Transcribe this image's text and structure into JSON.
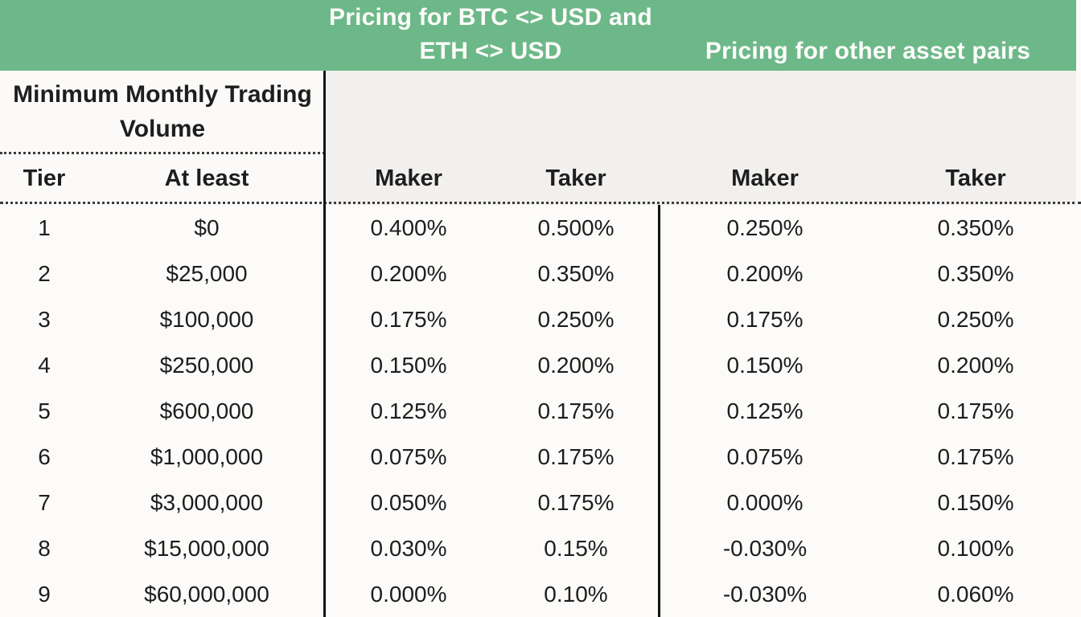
{
  "title_band": {
    "btc_eth_line1": "Pricing for BTC <> USD and",
    "btc_eth_line2": "ETH <> USD",
    "other_pairs": "Pricing for other asset pairs"
  },
  "headers": {
    "volume_line1": "Minimum Monthly Trading",
    "volume_line2": "Volume",
    "tier": "Tier",
    "at_least": "At least",
    "btc_eth_maker": "Maker",
    "btc_eth_taker": "Taker",
    "other_maker": "Maker",
    "other_taker": "Taker"
  },
  "colors": {
    "band_green": "#6db888",
    "header_gray": "#f2f0ee",
    "paper_white": "#fcfbf9",
    "text_dark": "#1d1d1d",
    "band_text_white": "#fdfdfb"
  },
  "rows": [
    {
      "tier": "1",
      "at_least": "$0",
      "btc_eth_maker": "0.400%",
      "btc_eth_taker": "0.500%",
      "other_maker": "0.250%",
      "other_taker": "0.350%"
    },
    {
      "tier": "2",
      "at_least": "$25,000",
      "btc_eth_maker": "0.200%",
      "btc_eth_taker": "0.350%",
      "other_maker": "0.200%",
      "other_taker": "0.350%"
    },
    {
      "tier": "3",
      "at_least": "$100,000",
      "btc_eth_maker": "0.175%",
      "btc_eth_taker": "0.250%",
      "other_maker": "0.175%",
      "other_taker": "0.250%"
    },
    {
      "tier": "4",
      "at_least": "$250,000",
      "btc_eth_maker": "0.150%",
      "btc_eth_taker": "0.200%",
      "other_maker": "0.150%",
      "other_taker": "0.200%"
    },
    {
      "tier": "5",
      "at_least": "$600,000",
      "btc_eth_maker": "0.125%",
      "btc_eth_taker": "0.175%",
      "other_maker": "0.125%",
      "other_taker": "0.175%"
    },
    {
      "tier": "6",
      "at_least": "$1,000,000",
      "btc_eth_maker": "0.075%",
      "btc_eth_taker": "0.175%",
      "other_maker": "0.075%",
      "other_taker": "0.175%"
    },
    {
      "tier": "7",
      "at_least": "$3,000,000",
      "btc_eth_maker": "0.050%",
      "btc_eth_taker": "0.175%",
      "other_maker": "0.000%",
      "other_taker": "0.150%"
    },
    {
      "tier": "8",
      "at_least": "$15,000,000",
      "btc_eth_maker": "0.030%",
      "btc_eth_taker": "0.15%",
      "other_maker": "-0.030%",
      "other_taker": "0.100%"
    },
    {
      "tier": "9",
      "at_least": "$60,000,000",
      "btc_eth_maker": "0.000%",
      "btc_eth_taker": "0.10%",
      "other_maker": "-0.030%",
      "other_taker": "0.060%"
    }
  ]
}
